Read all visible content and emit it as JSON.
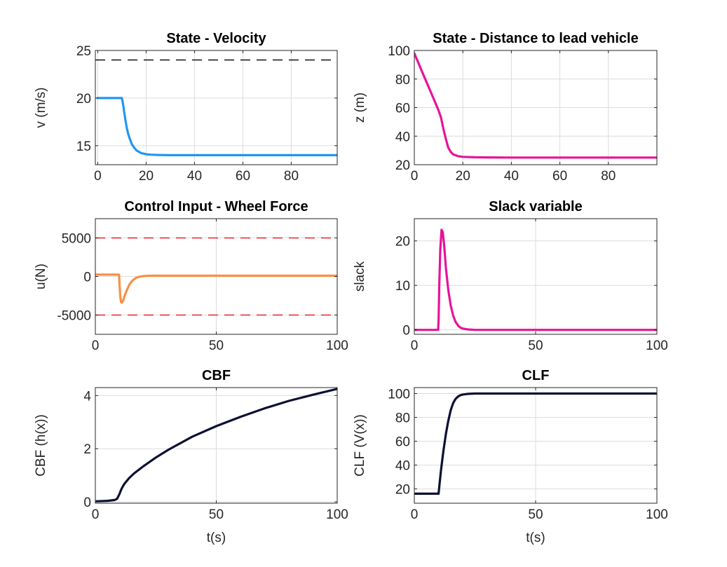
{
  "chart_data": [
    {
      "type": "line",
      "title": "State - Velocity",
      "xlabel": "",
      "ylabel": "v (m/s)",
      "xlim": [
        -1,
        99
      ],
      "ylim": [
        13,
        25
      ],
      "xticks": [
        0,
        20,
        40,
        60,
        80
      ],
      "yticks": [
        15,
        20,
        25
      ],
      "grid": true,
      "series": [
        {
          "color": "#2196F3",
          "width": 3.2,
          "dash": "",
          "x": [
            0,
            10,
            10.5,
            11,
            11.5,
            12,
            12.5,
            13,
            14,
            15,
            16,
            17,
            18,
            20,
            22,
            25,
            30,
            40,
            60,
            80,
            99
          ],
          "y": [
            20,
            20,
            19.3,
            18.4,
            17.6,
            16.9,
            16.3,
            15.9,
            15.2,
            14.8,
            14.5,
            14.35,
            14.22,
            14.1,
            14.05,
            14.02,
            14.0,
            14.0,
            14.0,
            14.0,
            14.0
          ]
        },
        {
          "color": "#000000",
          "width": 1.4,
          "dash": "14,9",
          "x": [
            -1,
            99
          ],
          "y": [
            24,
            24
          ]
        }
      ]
    },
    {
      "type": "line",
      "title": "State - Distance to lead vehicle",
      "xlabel": "",
      "ylabel": "z (m)",
      "xlim": [
        0,
        100
      ],
      "ylim": [
        20,
        100
      ],
      "xticks": [
        0,
        20,
        40,
        60,
        80
      ],
      "yticks": [
        20,
        40,
        60,
        80,
        100
      ],
      "grid": true,
      "series": [
        {
          "color": "#E6139A",
          "width": 3.2,
          "dash": "",
          "x": [
            0,
            2,
            4,
            6,
            8,
            10,
            11,
            12,
            13,
            14,
            15,
            16,
            18,
            20,
            25,
            30,
            40,
            60,
            80,
            100
          ],
          "y": [
            98,
            90,
            82,
            74,
            66,
            58,
            53,
            45,
            38,
            32,
            29,
            27.2,
            26,
            25.5,
            25.2,
            25.1,
            25,
            25,
            25,
            25
          ]
        }
      ]
    },
    {
      "type": "line",
      "title": "Control Input - Wheel Force",
      "xlabel": "",
      "ylabel": "u(N)",
      "xlim": [
        0,
        100
      ],
      "ylim": [
        -7500,
        7500
      ],
      "xticks": [
        0,
        50,
        100
      ],
      "yticks": [
        -5000,
        0,
        5000
      ],
      "grid": true,
      "series": [
        {
          "color": "#F98F45",
          "width": 3.2,
          "dash": "",
          "x": [
            0,
            9.8,
            10,
            10.3,
            10.6,
            11,
            11.5,
            12,
            13,
            14,
            15,
            16,
            17,
            18,
            19,
            20,
            22,
            25,
            30,
            50,
            100
          ],
          "y": [
            250,
            250,
            -1000,
            -2500,
            -3300,
            -3400,
            -3100,
            -2600,
            -1800,
            -1100,
            -650,
            -350,
            -150,
            -50,
            20,
            60,
            90,
            100,
            100,
            100,
            100
          ]
        },
        {
          "color": "#E8242A",
          "width": 1.4,
          "dash": "14,9",
          "x": [
            0,
            100
          ],
          "y": [
            5000,
            5000
          ]
        },
        {
          "color": "#E8242A",
          "width": 1.4,
          "dash": "14,9",
          "x": [
            0,
            100
          ],
          "y": [
            -5000,
            -5000
          ]
        }
      ]
    },
    {
      "type": "line",
      "title": "Slack variable",
      "xlabel": "",
      "ylabel": "slack",
      "xlim": [
        0,
        100
      ],
      "ylim": [
        -1,
        25
      ],
      "xticks": [
        0,
        50,
        100
      ],
      "yticks": [
        0,
        10,
        20
      ],
      "grid": true,
      "series": [
        {
          "color": "#E6139A",
          "width": 3.2,
          "dash": "",
          "x": [
            0,
            9.8,
            10,
            10.3,
            10.7,
            11.2,
            11.7,
            12.3,
            13,
            14,
            15,
            16,
            17,
            18,
            19,
            20,
            22,
            25,
            30,
            50,
            100
          ],
          "y": [
            0,
            0,
            2,
            10,
            18,
            22.5,
            22,
            19,
            14,
            9,
            5.5,
            3.2,
            1.8,
            1,
            0.5,
            0.3,
            0.1,
            0,
            0,
            0,
            0
          ]
        }
      ]
    },
    {
      "type": "line",
      "title": "CBF",
      "xlabel": "t(s)",
      "ylabel": "CBF (h(x))",
      "xlim": [
        0,
        100
      ],
      "ylim": [
        -0.05,
        4.3
      ],
      "xticks": [
        0,
        50,
        100
      ],
      "yticks": [
        0,
        2,
        4
      ],
      "grid": true,
      "series": [
        {
          "color": "#0D1033",
          "width": 3.2,
          "dash": "",
          "x": [
            0,
            5,
            8,
            9,
            10,
            10.5,
            11,
            12,
            14,
            16,
            20,
            25,
            30,
            40,
            50,
            60,
            70,
            80,
            90,
            100
          ],
          "y": [
            0.02,
            0.04,
            0.07,
            0.12,
            0.3,
            0.42,
            0.52,
            0.68,
            0.9,
            1.07,
            1.35,
            1.67,
            1.95,
            2.45,
            2.85,
            3.2,
            3.52,
            3.8,
            4.03,
            4.25
          ]
        }
      ]
    },
    {
      "type": "line",
      "title": "CLF",
      "xlabel": "t(s)",
      "ylabel": "CLF (V(x))",
      "xlim": [
        0,
        100
      ],
      "ylim": [
        8,
        105
      ],
      "xticks": [
        0,
        50,
        100
      ],
      "yticks": [
        20,
        40,
        60,
        80,
        100
      ],
      "grid": true,
      "series": [
        {
          "color": "#0D1033",
          "width": 3.2,
          "dash": "",
          "x": [
            0,
            10,
            10.3,
            11,
            12,
            13,
            14,
            15,
            16,
            17,
            18,
            19,
            20,
            22,
            25,
            30,
            50,
            100
          ],
          "y": [
            16,
            16,
            22,
            36,
            52,
            66,
            77,
            86,
            92,
            95.5,
            97.5,
            98.6,
            99.2,
            99.7,
            100,
            100,
            100,
            100
          ]
        }
      ]
    }
  ]
}
